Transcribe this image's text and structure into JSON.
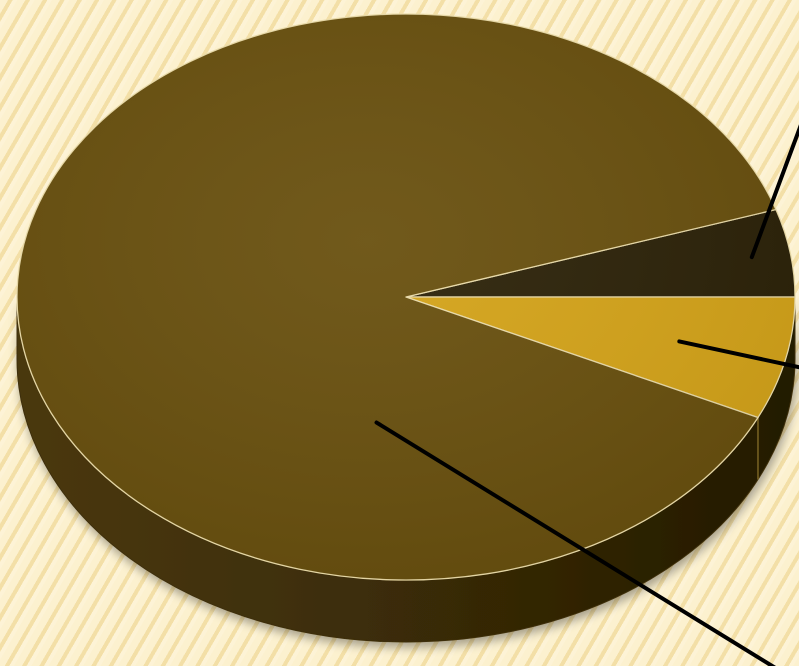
{
  "chart_data": {
    "type": "pie",
    "title": "",
    "style": "3d",
    "legend": "none",
    "slices": [
      {
        "label": "",
        "value": 0.05,
        "color": "#2b2107"
      },
      {
        "label": "",
        "value": 0.07,
        "color": "#d4a318"
      },
      {
        "label": "",
        "value": 0.88,
        "color": "#684f0d"
      }
    ],
    "edge_color": "#3e2f08",
    "outline_color": "#eadba8",
    "leader_line_color": "#000000"
  }
}
